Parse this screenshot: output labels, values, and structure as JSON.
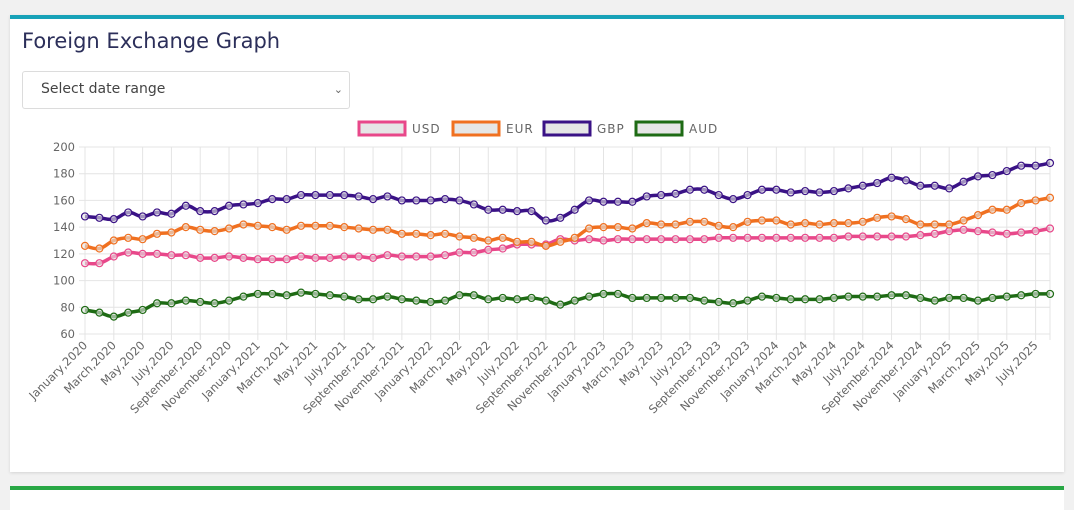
{
  "card": {
    "title": "Foreign Exchange Graph",
    "accent_color": "#17a2b8",
    "next_card_accent": "#28a745"
  },
  "date_range_select": {
    "placeholder": "Select date range",
    "icon": "chevron-down-icon"
  },
  "chart_data": {
    "type": "line",
    "title": "",
    "xlabel": "",
    "ylabel": "",
    "ylim": [
      60,
      200
    ],
    "y_ticks": [
      60,
      80,
      100,
      120,
      140,
      160,
      180,
      200
    ],
    "grid": true,
    "legend_position": "top",
    "x_tick_labels": [
      "January,2020",
      "March,2020",
      "May,2020",
      "July,2020",
      "September,2020",
      "November,2020",
      "January,2021",
      "March,2021",
      "May,2021",
      "July,2021",
      "September,2021",
      "November,2021",
      "January,2022",
      "March,2022",
      "May,2022",
      "July,2022",
      "September,2022",
      "November,2022",
      "January,2023",
      "March,2023",
      "May,2023",
      "July,2023",
      "September,2023",
      "November,2023",
      "January,2024",
      "March,2024",
      "May,2024",
      "July,2024",
      "September,2024",
      "November,2024",
      "January,2025",
      "March,2025",
      "May,2025",
      "July,2025"
    ],
    "series": [
      {
        "name": "USD",
        "color": "#e8488a",
        "values": [
          113,
          113,
          118,
          121,
          120,
          120,
          119,
          119,
          117,
          117,
          118,
          117,
          116,
          116,
          116,
          118,
          117,
          117,
          118,
          118,
          117,
          119,
          118,
          118,
          118,
          119,
          121,
          121,
          123,
          124,
          127,
          127,
          127,
          131,
          130,
          131,
          130,
          131,
          131,
          131,
          131,
          131,
          131,
          131,
          132,
          132,
          132,
          132,
          132,
          132,
          132,
          132,
          132,
          133,
          133,
          133,
          133,
          133,
          134,
          135,
          137,
          138,
          137,
          136,
          135,
          136,
          137,
          139
        ]
      },
      {
        "name": "EUR",
        "color": "#f07020",
        "values": [
          126,
          124,
          130,
          132,
          131,
          135,
          136,
          140,
          138,
          137,
          139,
          142,
          141,
          140,
          138,
          141,
          141,
          141,
          140,
          139,
          138,
          138,
          135,
          135,
          134,
          135,
          133,
          132,
          130,
          132,
          129,
          129,
          126,
          129,
          132,
          139,
          140,
          140,
          139,
          143,
          142,
          142,
          144,
          144,
          141,
          140,
          144,
          145,
          145,
          142,
          143,
          142,
          143,
          143,
          144,
          147,
          148,
          146,
          142,
          142,
          142,
          145,
          149,
          153,
          153,
          158,
          160,
          162
        ]
      },
      {
        "name": "GBP",
        "color": "#3a1286",
        "values": [
          148,
          147,
          146,
          151,
          148,
          151,
          150,
          156,
          152,
          152,
          156,
          157,
          158,
          161,
          161,
          164,
          164,
          164,
          164,
          163,
          161,
          163,
          160,
          160,
          160,
          161,
          160,
          157,
          153,
          153,
          152,
          152,
          145,
          147,
          153,
          160,
          159,
          159,
          159,
          163,
          164,
          165,
          168,
          168,
          164,
          161,
          164,
          168,
          168,
          166,
          167,
          166,
          167,
          169,
          171,
          173,
          177,
          175,
          171,
          171,
          169,
          174,
          178,
          179,
          182,
          186,
          186,
          188
        ]
      },
      {
        "name": "AUD",
        "color": "#1e6b14",
        "values": [
          78,
          76,
          73,
          76,
          78,
          83,
          83,
          85,
          84,
          83,
          85,
          88,
          90,
          90,
          89,
          91,
          90,
          89,
          88,
          86,
          86,
          88,
          86,
          85,
          84,
          85,
          89,
          89,
          86,
          87,
          86,
          87,
          85,
          82,
          85,
          88,
          90,
          90,
          87,
          87,
          87,
          87,
          87,
          85,
          84,
          83,
          85,
          88,
          87,
          86,
          86,
          86,
          87,
          88,
          88,
          88,
          89,
          89,
          87,
          85,
          87,
          87,
          85,
          87,
          88,
          89,
          90,
          90
        ]
      }
    ]
  }
}
